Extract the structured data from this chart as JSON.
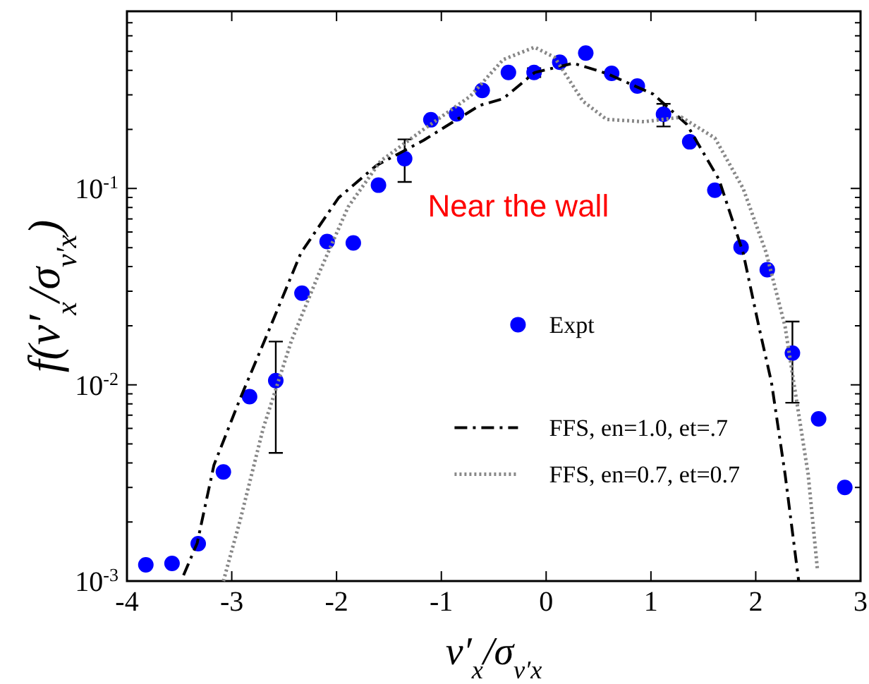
{
  "chart_data": {
    "type": "scatter",
    "xlabel": "v′$_{x}$/σ$_{v′x}$",
    "ylabel": "f(v′$_{x}$/σ$_{v′x}$)",
    "log": "y",
    "xlim": [
      -4,
      3
    ],
    "xticks": [
      -4,
      -3,
      -2,
      -1,
      0,
      1,
      2,
      3
    ],
    "ylim": [
      0.001,
      0.8
    ],
    "yticks": [
      {
        "value": 0.001,
        "label": "10$^{-3}$"
      },
      {
        "value": 0.002,
        "label": null
      },
      {
        "value": 0.003,
        "label": null
      },
      {
        "value": 0.004,
        "label": null
      },
      {
        "value": 0.005,
        "label": null
      },
      {
        "value": 0.006,
        "label": null
      },
      {
        "value": 0.007,
        "label": null
      },
      {
        "value": 0.008,
        "label": null
      },
      {
        "value": 0.009,
        "label": null
      },
      {
        "value": 0.01,
        "label": "10$^{-2}$"
      },
      {
        "value": 0.02,
        "label": null
      },
      {
        "value": 0.03,
        "label": null
      },
      {
        "value": 0.04,
        "label": null
      },
      {
        "value": 0.05,
        "label": null
      },
      {
        "value": 0.06,
        "label": null
      },
      {
        "value": 0.07,
        "label": null
      },
      {
        "value": 0.08,
        "label": null
      },
      {
        "value": 0.09,
        "label": null
      },
      {
        "value": 0.1,
        "label": "10$^{-1}$"
      },
      {
        "value": 0.2,
        "label": null
      },
      {
        "value": 0.3,
        "label": null
      },
      {
        "value": 0.4,
        "label": null
      },
      {
        "value": 0.5,
        "label": null
      },
      {
        "value": 0.6,
        "label": null
      },
      {
        "value": 0.7,
        "label": null
      },
      {
        "value": 0.8,
        "label": null
      }
    ],
    "grid": false,
    "legend": "center",
    "annotations": [
      "Near the wall"
    ],
    "series": [
      {
        "name": "Expt",
        "color": "#0000ff",
        "marker": "circle",
        "x": [
          -3.82,
          -3.57,
          -3.32,
          -3.08,
          -2.83,
          -2.58,
          -2.33,
          -2.09,
          -1.84,
          -1.6,
          -1.35,
          -1.1,
          -0.855,
          -0.61,
          -0.36,
          -0.115,
          0.13,
          0.378,
          0.625,
          0.87,
          1.12,
          1.37,
          1.61,
          1.86,
          2.11,
          2.35,
          2.6,
          2.85
        ],
        "values": [
          0.00121,
          0.00123,
          0.00155,
          0.0036,
          0.0087,
          0.0105,
          0.0293,
          0.0537,
          0.0528,
          0.104,
          0.142,
          0.224,
          0.24,
          0.316,
          0.39,
          0.39,
          0.44,
          0.49,
          0.386,
          0.333,
          0.239,
          0.173,
          0.098,
          0.0503,
          0.0386,
          0.0145,
          0.0067,
          0.003
        ],
        "errors": [
          null,
          null,
          null,
          null,
          null,
          [
            0.0045,
            0.0166
          ],
          null,
          null,
          null,
          null,
          [
            0.108,
            0.178
          ],
          null,
          null,
          null,
          null,
          [
            0.37,
            0.41
          ],
          null,
          null,
          null,
          null,
          [
            0.207,
            0.27
          ],
          null,
          null,
          null,
          null,
          [
            0.0081,
            0.021
          ],
          null,
          null
        ]
      },
      {
        "name": "FFS, en=1.0, et=.7",
        "type": "line",
        "color": "#000000",
        "line_style": "dashed",
        "x": [
          -3.46,
          -3.33,
          -3.17,
          -2.92,
          -2.65,
          -2.34,
          -1.98,
          -1.62,
          -1.17,
          -0.635,
          -0.41,
          -0.11,
          0.26,
          0.576,
          1.02,
          1.34,
          1.65,
          1.88,
          2.03,
          2.15,
          2.28,
          2.41
        ],
        "values": [
          0.00107,
          0.00156,
          0.0039,
          0.0085,
          0.0187,
          0.047,
          0.0898,
          0.131,
          0.176,
          0.265,
          0.287,
          0.39,
          0.435,
          0.386,
          0.303,
          0.213,
          0.111,
          0.047,
          0.0198,
          0.0103,
          0.0035,
          0.001
        ]
      },
      {
        "name": "FFS, en=0.7, et=0.7",
        "type": "line",
        "color": "#888888",
        "line_style": "dotted",
        "x": [
          -3.08,
          -2.92,
          -2.7,
          -2.43,
          -2.16,
          -1.89,
          -1.58,
          -1.17,
          -0.725,
          -0.41,
          -0.11,
          0.08,
          0.35,
          0.576,
          0.935,
          1.29,
          1.61,
          1.88,
          2.1,
          2.28,
          2.37,
          2.5,
          2.59
        ],
        "values": [
          0.001,
          0.00204,
          0.006,
          0.0168,
          0.0378,
          0.0805,
          0.138,
          0.2,
          0.295,
          0.454,
          0.525,
          0.466,
          0.279,
          0.225,
          0.219,
          0.231,
          0.181,
          0.1,
          0.047,
          0.0198,
          0.0097,
          0.0035,
          0.00113
        ]
      }
    ]
  }
}
